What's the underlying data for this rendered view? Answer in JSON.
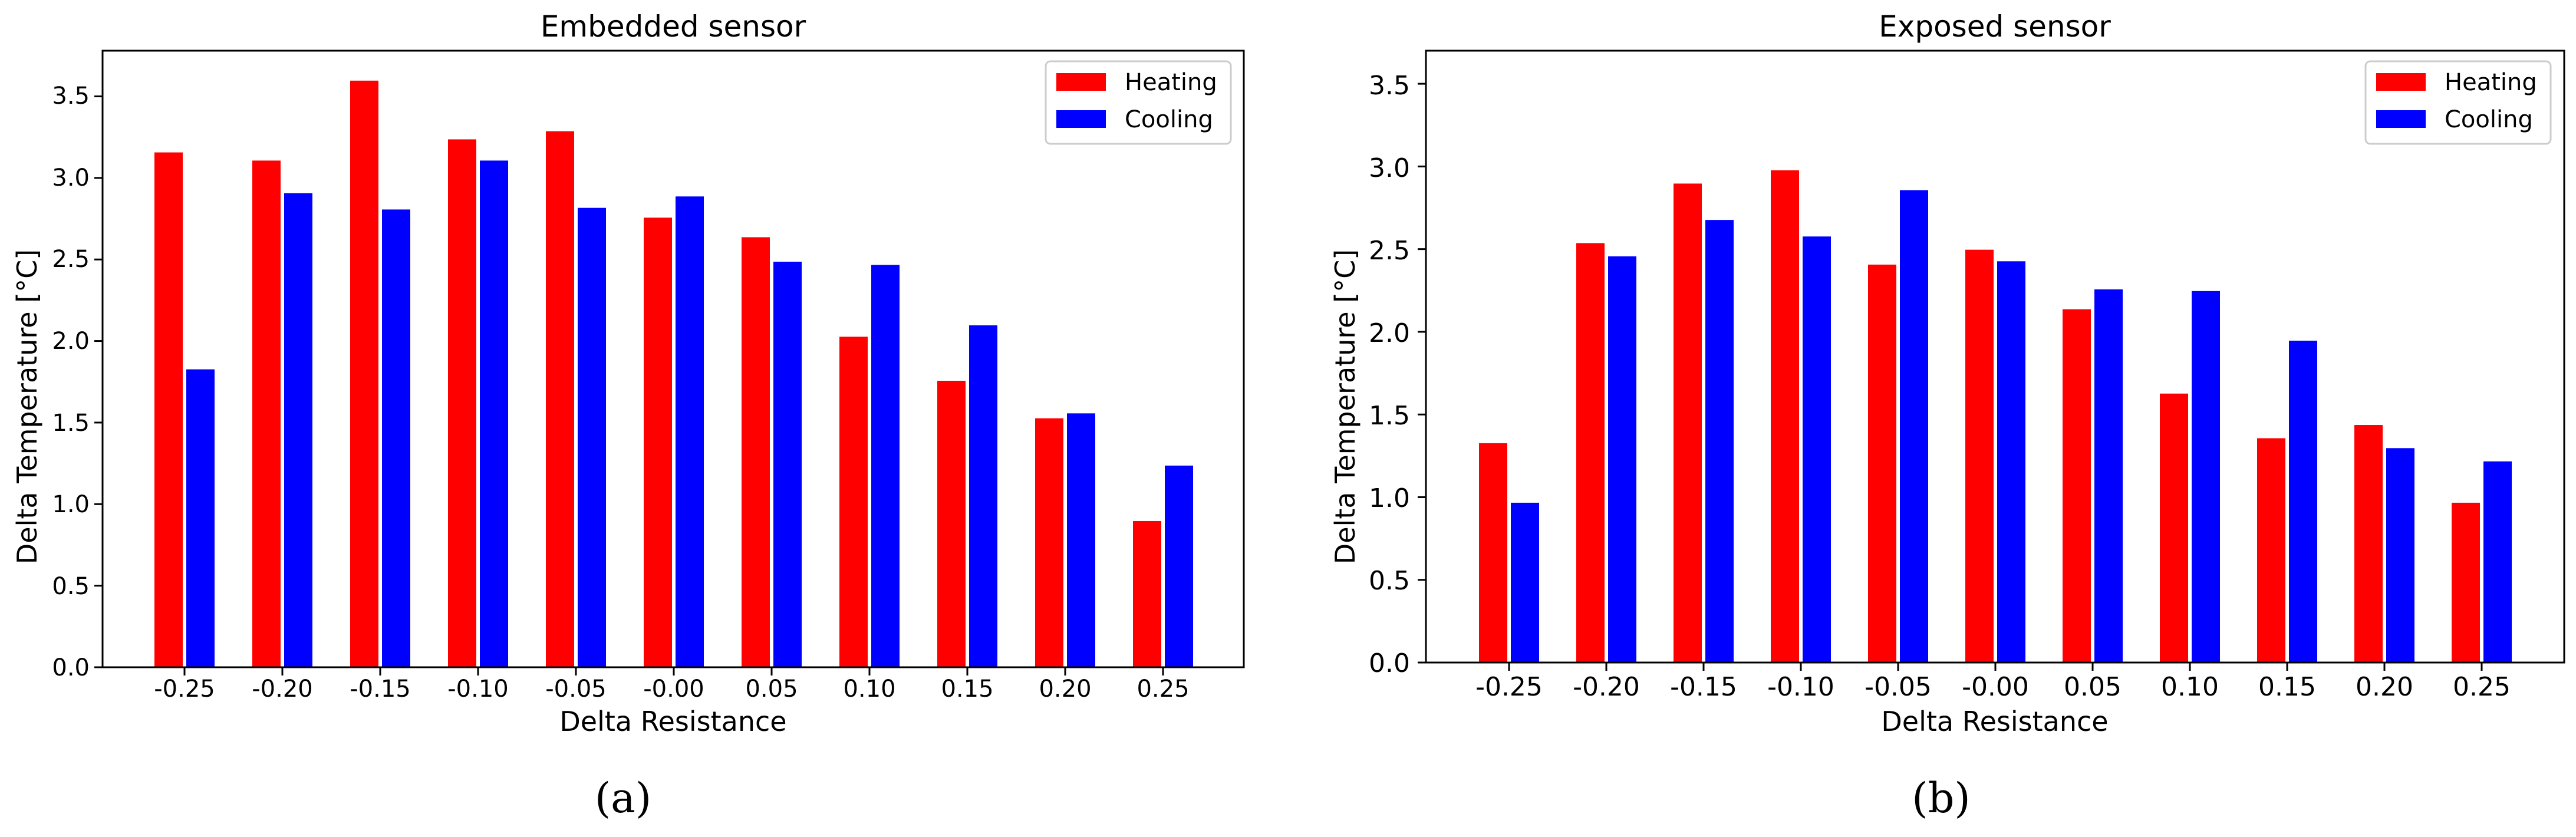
{
  "colors": {
    "heating": "#ff0000",
    "cooling": "#0000ff",
    "axis": "#000000",
    "background": "#ffffff"
  },
  "chart_data": [
    {
      "type": "bar",
      "title": "Embedded sensor",
      "xlabel": "Delta Resistance",
      "ylabel": "Delta Temperature [°C]",
      "ylim": [
        0,
        3.78
      ],
      "yticks": [
        0.0,
        0.5,
        1.0,
        1.5,
        2.0,
        2.5,
        3.0,
        3.5
      ],
      "ytick_labels": [
        "0.0",
        "0.5",
        "1.0",
        "1.5",
        "2.0",
        "2.5",
        "3.0",
        "3.5"
      ],
      "grid": false,
      "legend_position": "top-right",
      "categories": [
        "-0.25",
        "-0.20",
        "-0.15",
        "-0.10",
        "-0.05",
        "-0.00",
        "0.05",
        "0.10",
        "0.15",
        "0.20",
        "0.25"
      ],
      "series": [
        {
          "name": "Heating",
          "color": "#ff0000",
          "values": [
            3.16,
            3.11,
            3.6,
            3.24,
            3.29,
            2.76,
            2.64,
            2.03,
            1.76,
            1.53,
            0.9
          ]
        },
        {
          "name": "Cooling",
          "color": "#0000ff",
          "values": [
            1.83,
            2.91,
            2.81,
            3.11,
            2.82,
            2.89,
            2.49,
            2.47,
            2.1,
            1.56,
            1.24
          ]
        }
      ],
      "panel_label": "(a)"
    },
    {
      "type": "bar",
      "title": "Exposed sensor",
      "xlabel": "Delta Resistance",
      "ylabel": "Delta Temperature [°C]",
      "ylim": [
        0,
        3.7
      ],
      "yticks": [
        0.0,
        0.5,
        1.0,
        1.5,
        2.0,
        2.5,
        3.0,
        3.5
      ],
      "ytick_labels": [
        "0.0",
        "0.5",
        "1.0",
        "1.5",
        "2.0",
        "2.5",
        "3.0",
        "3.5"
      ],
      "grid": false,
      "legend_position": "top-right",
      "categories": [
        "-0.25",
        "-0.20",
        "-0.15",
        "-0.10",
        "-0.05",
        "-0.00",
        "0.05",
        "0.10",
        "0.15",
        "0.20",
        "0.25"
      ],
      "series": [
        {
          "name": "Heating",
          "color": "#ff0000",
          "values": [
            1.33,
            2.54,
            2.9,
            2.98,
            2.41,
            2.5,
            2.14,
            1.63,
            1.36,
            1.44,
            0.97
          ]
        },
        {
          "name": "Cooling",
          "color": "#0000ff",
          "values": [
            0.97,
            2.46,
            2.68,
            2.58,
            2.86,
            2.43,
            2.26,
            2.25,
            1.95,
            1.3,
            1.22
          ]
        }
      ],
      "panel_label": "(b)"
    }
  ]
}
